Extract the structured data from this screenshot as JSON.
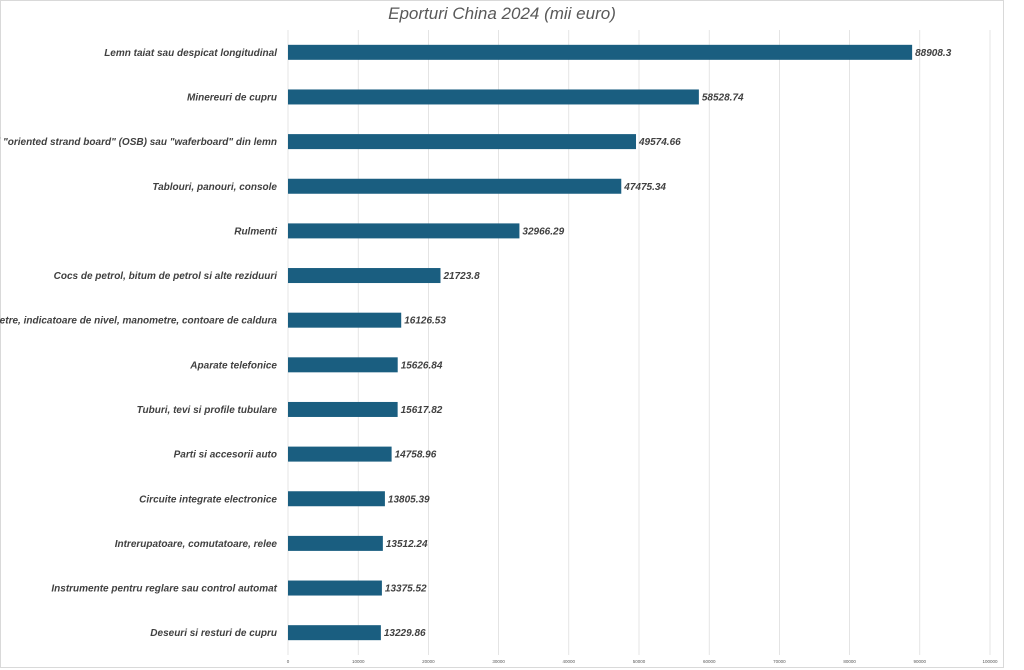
{
  "chart_data": {
    "type": "bar",
    "orientation": "horizontal",
    "title": "Eporturi China 2024 (mii euro)",
    "xlabel": "",
    "ylabel": "",
    "xlim": [
      0,
      100000
    ],
    "x_ticks": [
      0,
      10000,
      20000,
      30000,
      40000,
      50000,
      60000,
      70000,
      80000,
      90000,
      100000
    ],
    "grid": true,
    "bar_color": "#1a5e80",
    "categories": [
      "Lemn taiat sau despicat longitudinal",
      "Minereuri de cupru",
      "Panouri \"oriented strand board\" (OSB) sau  \"waferboard\" din lemn",
      "Tablouri, panouri, console",
      "Rulmenti",
      "Cocs de petrol, bitum de petrol si alte reziduuri",
      "Debitmetre, indicatoare de nivel, manometre, contoare de caldura",
      "Aparate telefonice",
      "Tuburi, tevi si profile tubulare",
      "Parti si accesorii auto",
      "Circuite integrate electronice",
      "Intrerupatoare, comutatoare, relee",
      "Instrumente  pentru reglare sau control automat",
      "Deseuri si resturi de cupru"
    ],
    "values": [
      88908.3,
      58528.74,
      49574.66,
      47475.34,
      32966.29,
      21723.8,
      16126.53,
      15626.84,
      15617.82,
      14758.96,
      13805.39,
      13512.24,
      13375.52,
      13229.86
    ],
    "value_labels": [
      "88908.3",
      "58528.74",
      "49574.66",
      "47475.34",
      "32966.29",
      "21723.8",
      "16126.53",
      "15626.84",
      "15617.82",
      "14758.96",
      "13805.39",
      "13512.24",
      "13375.52",
      "13229.86"
    ]
  }
}
